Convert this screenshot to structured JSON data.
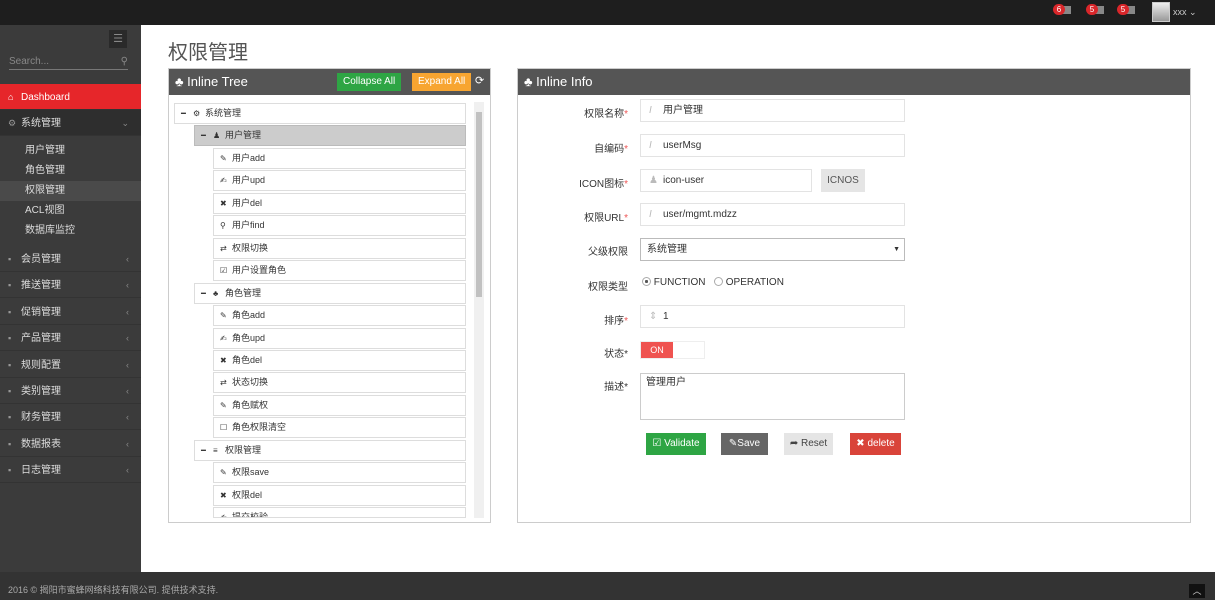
{
  "topbar": {
    "badges": [
      "6",
      "5",
      "5"
    ],
    "user": "xxx"
  },
  "sidebar": {
    "search_placeholder": "Search...",
    "items": [
      {
        "label": "Dashboard",
        "icon": "home-icon"
      },
      {
        "label": "系统管理",
        "icon": "cogs-icon"
      }
    ],
    "sub": [
      "用户管理",
      "角色管理",
      "权限管理",
      "ACL视图",
      "数据库监控"
    ],
    "groups": [
      "会员管理",
      "推送管理",
      "促销管理",
      "产品管理",
      "规则配置",
      "类别管理",
      "财务管理",
      "数据报表",
      "日志管理"
    ]
  },
  "page_title": "权限管理",
  "tree": {
    "title": "Inline Tree",
    "collapse": "Collapse All",
    "expand": "Expand All",
    "nodes": [
      {
        "level": 0,
        "label": "系统管理",
        "icon": "cogs-icon"
      },
      {
        "level": 1,
        "label": "用户管理",
        "icon": "user-icon"
      },
      {
        "level": 2,
        "label": "用户add",
        "icon": "pencil-icon"
      },
      {
        "level": 2,
        "label": "用户upd",
        "icon": "edit-icon"
      },
      {
        "level": 2,
        "label": "用户del",
        "icon": "times-icon"
      },
      {
        "level": 2,
        "label": "用户find",
        "icon": "search-icon"
      },
      {
        "level": 2,
        "label": "权限切换",
        "icon": "retweet-icon"
      },
      {
        "level": 2,
        "label": "用户设置角色",
        "icon": "check-square-icon"
      },
      {
        "level": 1,
        "label": "角色管理",
        "icon": "sitemap-icon"
      },
      {
        "level": 2,
        "label": "角色add",
        "icon": "pencil-icon"
      },
      {
        "level": 2,
        "label": "角色upd",
        "icon": "edit-icon"
      },
      {
        "level": 2,
        "label": "角色del",
        "icon": "times-icon"
      },
      {
        "level": 2,
        "label": "状态切换",
        "icon": "retweet-icon"
      },
      {
        "level": 2,
        "label": "角色赋权",
        "icon": "pencil-icon"
      },
      {
        "level": 2,
        "label": "角色权限清空",
        "icon": "square-icon"
      },
      {
        "level": 1,
        "label": "权限管理",
        "icon": "bars-icon"
      },
      {
        "level": 2,
        "label": "权限save",
        "icon": "pencil-icon"
      },
      {
        "level": 2,
        "label": "权限del",
        "icon": "times-icon"
      },
      {
        "level": 2,
        "label": "提交校验",
        "icon": "edit-icon"
      }
    ]
  },
  "info": {
    "title": "Inline Info",
    "name_label": "权限名称",
    "name": "用户管理",
    "code_label": "自编码",
    "code": "userMsg",
    "icon_label": "ICON图标",
    "icon": "icon-user",
    "icnos": "ICNOS",
    "url_label": "权限URL",
    "url": "user/mgmt.mdzz",
    "parent_label": "父级权限",
    "parent": "系统管理",
    "type_label": "权限类型",
    "type_options": [
      "FUNCTION",
      "OPERATION"
    ],
    "type_selected": "FUNCTION",
    "order_label": "排序",
    "order": "1",
    "status_label": "状态",
    "status": "ON",
    "desc_label": "描述",
    "desc": "管理用户",
    "buttons": {
      "validate": "Validate",
      "save": "Save",
      "reset": "Reset",
      "delete": "delete"
    }
  },
  "footer": "2016 © 揭阳市蜜蜂网络科技有限公司. 提供技术支持.",
  "colors": {
    "accent": "#e6262a",
    "green": "#2ea544",
    "orange": "#f7a531",
    "danger": "#d9443a"
  }
}
